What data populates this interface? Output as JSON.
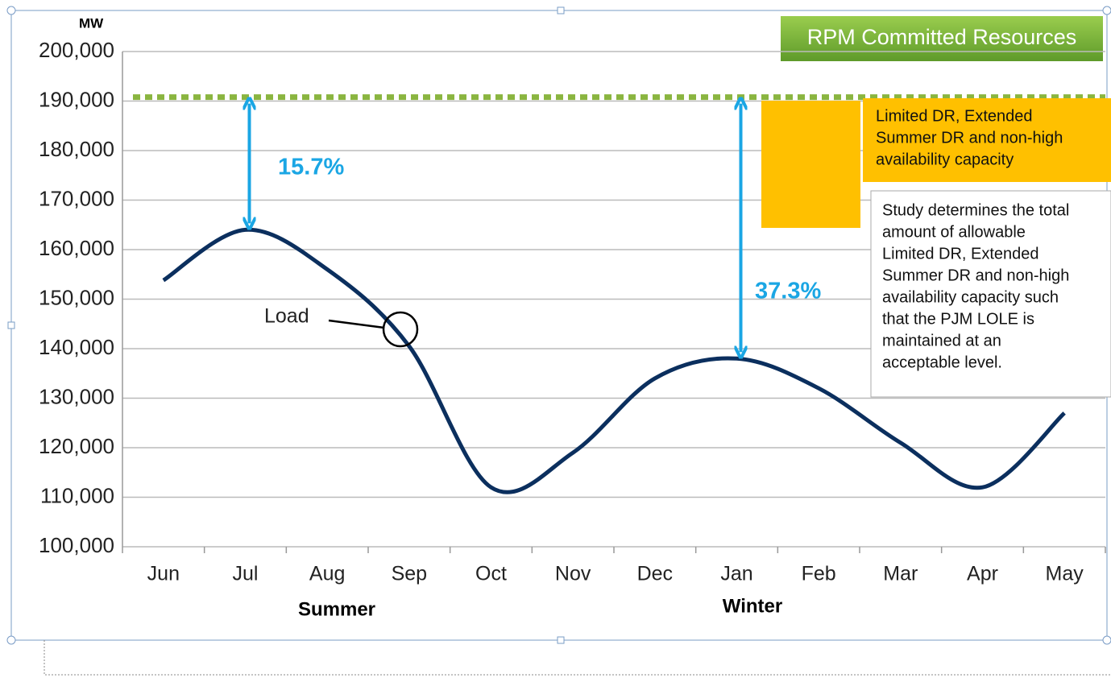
{
  "chart_data": {
    "type": "line",
    "title": "RPM Committed Resources",
    "y_unit": "MW",
    "categories": [
      "Jun",
      "Jul",
      "Aug",
      "Sep",
      "Oct",
      "Nov",
      "Dec",
      "Jan",
      "Feb",
      "Mar",
      "Apr",
      "May"
    ],
    "values": [
      153800,
      164000,
      156000,
      140500,
      112000,
      119000,
      134000,
      138000,
      132000,
      121000,
      112000,
      127000
    ],
    "color": "#0b2f5e",
    "ylim": [
      100000,
      200000
    ],
    "yticks": [
      {
        "value": 100000,
        "label": "100,000"
      },
      {
        "value": 110000,
        "label": "110,000"
      },
      {
        "value": 120000,
        "label": "120,000"
      },
      {
        "value": 130000,
        "label": "130,000"
      },
      {
        "value": 140000,
        "label": "140,000"
      },
      {
        "value": 150000,
        "label": "150,000"
      },
      {
        "value": 160000,
        "label": "160,000"
      },
      {
        "value": 170000,
        "label": "170,000"
      },
      {
        "value": 180000,
        "label": "180,000"
      },
      {
        "value": 190000,
        "label": "190,000"
      },
      {
        "value": 200000,
        "label": "200,000"
      }
    ],
    "grid": true,
    "reference_line": {
      "value": 190800,
      "color": "#8ab540"
    },
    "annotations": {
      "series_label": "Load",
      "summer_gap": "15.7%",
      "winter_gap": "37.3%",
      "summer": "Summer",
      "winter": "Winter"
    },
    "orange_box": [
      "Limited DR, Extended",
      "Summer DR and non-high",
      "availability  capacity"
    ],
    "study_box": [
      "Study determines the total",
      "amount  of allowable",
      "Limited DR, Extended",
      "Summer DR and non-high",
      "availability  capacity such",
      "that the PJM LOLE is",
      "maintained at an",
      "acceptable level."
    ]
  }
}
